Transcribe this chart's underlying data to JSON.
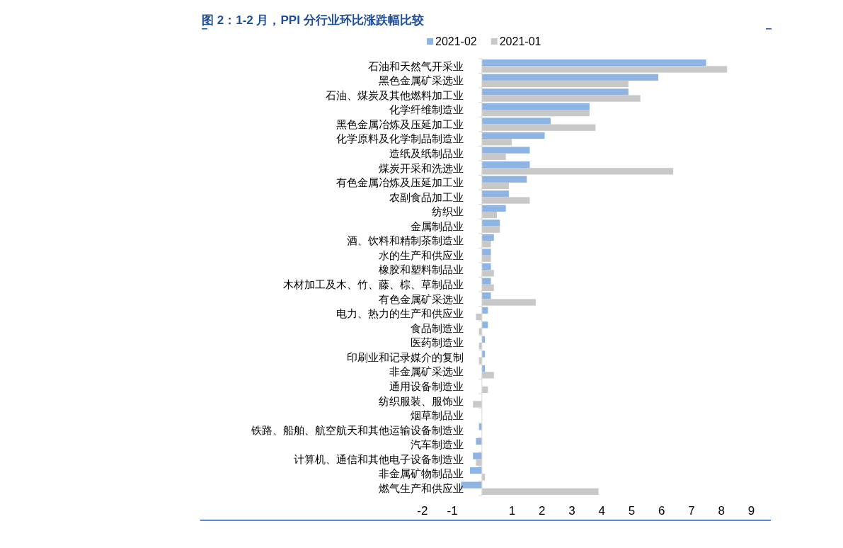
{
  "chart_data": {
    "type": "bar",
    "orientation": "horizontal",
    "title": "图 2：1-2 月，PPI 分行业环比涨跌幅比较",
    "categories": [
      "石油和天然气开采业",
      "黑色金属矿采选业",
      "石油、煤炭及其他燃料加工业",
      "化学纤维制造业",
      "黑色金属冶炼及压延加工业",
      "化学原料及化学制品制造业",
      "造纸及纸制品业",
      "煤炭开采和洗选业",
      "有色金属冶炼及压延加工业",
      "农副食品加工业",
      "纺织业",
      "金属制品业",
      "酒、饮料和精制茶制造业",
      "水的生产和供应业",
      "橡胶和塑料制品业",
      "木材加工及木、竹、藤、棕、草制品业",
      "有色金属矿采选业",
      "电力、热力的生产和供应业",
      "食品制造业",
      "医药制造业",
      "印刷业和记录媒介的复制",
      "非金属矿采选业",
      "通用设备制造业",
      "纺织服装、服饰业",
      "烟草制品业",
      "铁路、船舶、航空航天和其他运输设备制造业",
      "汽车制造业",
      "计算机、通信和其他电子设备制造业",
      "非金属矿物制品业",
      "燃气生产和供应业"
    ],
    "series": [
      {
        "name": "2021-02",
        "color": "#8db4e2",
        "values": [
          7.5,
          5.9,
          4.9,
          3.6,
          2.3,
          2.1,
          1.6,
          1.6,
          1.5,
          0.9,
          0.8,
          0.6,
          0.4,
          0.3,
          0.3,
          0.3,
          0.3,
          0.2,
          0.2,
          0.1,
          0.1,
          0.1,
          0,
          0,
          0,
          -0.1,
          -0.2,
          -0.3,
          -0.4,
          -0.7
        ]
      },
      {
        "name": "2021-01",
        "color": "#c8c8c8",
        "values": [
          8.2,
          4.9,
          5.3,
          3.6,
          3.8,
          1.0,
          0.8,
          6.4,
          0.9,
          1.6,
          0.5,
          0.6,
          0.3,
          0.3,
          0.4,
          0.4,
          1.8,
          -0.2,
          -0.1,
          -0.1,
          -0.1,
          0.4,
          0.2,
          -0.3,
          0,
          0,
          0,
          -0.2,
          0.1,
          3.9
        ]
      }
    ],
    "xlim": [
      -2,
      9
    ],
    "xticks": [
      -2,
      -1,
      1,
      2,
      3,
      4,
      5,
      6,
      7,
      8,
      9
    ],
    "legend": "top",
    "grid": false
  }
}
